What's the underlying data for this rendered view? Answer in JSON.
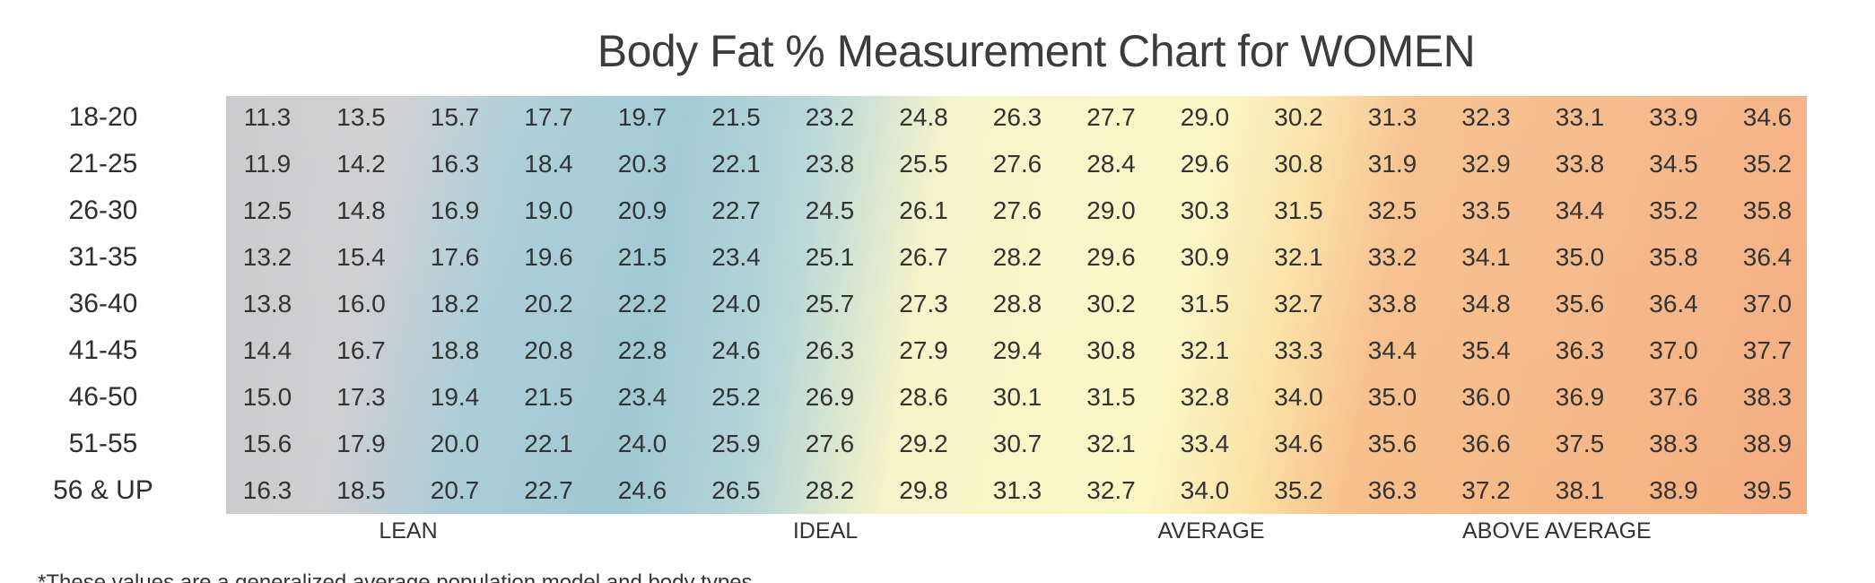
{
  "chart_data": {
    "type": "table",
    "title": "Body Fat % Measurement Chart for WOMEN",
    "rows": [
      "18-20",
      "21-25",
      "26-30",
      "31-35",
      "36-40",
      "41-45",
      "46-50",
      "51-55",
      "56 & UP"
    ],
    "values": [
      [
        "11.3",
        "13.5",
        "15.7",
        "17.7",
        "19.7",
        "21.5",
        "23.2",
        "24.8",
        "26.3",
        "27.7",
        "29.0",
        "30.2",
        "31.3",
        "32.3",
        "33.1",
        "33.9",
        "34.6"
      ],
      [
        "11.9",
        "14.2",
        "16.3",
        "18.4",
        "20.3",
        "22.1",
        "23.8",
        "25.5",
        "27.6",
        "28.4",
        "29.6",
        "30.8",
        "31.9",
        "32.9",
        "33.8",
        "34.5",
        "35.2"
      ],
      [
        "12.5",
        "14.8",
        "16.9",
        "19.0",
        "20.9",
        "22.7",
        "24.5",
        "26.1",
        "27.6",
        "29.0",
        "30.3",
        "31.5",
        "32.5",
        "33.5",
        "34.4",
        "35.2",
        "35.8"
      ],
      [
        "13.2",
        "15.4",
        "17.6",
        "19.6",
        "21.5",
        "23.4",
        "25.1",
        "26.7",
        "28.2",
        "29.6",
        "30.9",
        "32.1",
        "33.2",
        "34.1",
        "35.0",
        "35.8",
        "36.4"
      ],
      [
        "13.8",
        "16.0",
        "18.2",
        "20.2",
        "22.2",
        "24.0",
        "25.7",
        "27.3",
        "28.8",
        "30.2",
        "31.5",
        "32.7",
        "33.8",
        "34.8",
        "35.6",
        "36.4",
        "37.0"
      ],
      [
        "14.4",
        "16.7",
        "18.8",
        "20.8",
        "22.8",
        "24.6",
        "26.3",
        "27.9",
        "29.4",
        "30.8",
        "32.1",
        "33.3",
        "34.4",
        "35.4",
        "36.3",
        "37.0",
        "37.7"
      ],
      [
        "15.0",
        "17.3",
        "19.4",
        "21.5",
        "23.4",
        "25.2",
        "26.9",
        "28.6",
        "30.1",
        "31.5",
        "32.8",
        "34.0",
        "35.0",
        "36.0",
        "36.9",
        "37.6",
        "38.3"
      ],
      [
        "15.6",
        "17.9",
        "20.0",
        "22.1",
        "24.0",
        "25.9",
        "27.6",
        "29.2",
        "30.7",
        "32.1",
        "33.4",
        "34.6",
        "35.6",
        "36.6",
        "37.5",
        "38.3",
        "38.9"
      ],
      [
        "16.3",
        "18.5",
        "20.7",
        "22.7",
        "24.6",
        "26.5",
        "28.2",
        "29.8",
        "31.3",
        "32.7",
        "34.0",
        "35.2",
        "36.3",
        "37.2",
        "38.1",
        "38.9",
        "39.5"
      ]
    ],
    "band_labels": [
      "LEAN",
      "IDEAL",
      "AVERAGE",
      "ABOVE AVERAGE"
    ],
    "band_colors": [
      "#c9c9cb",
      "#9ec8d4",
      "#f8f3c2",
      "#f4ad80"
    ],
    "grid": false
  },
  "footnote": "*These values are a generalized average population model and body types"
}
